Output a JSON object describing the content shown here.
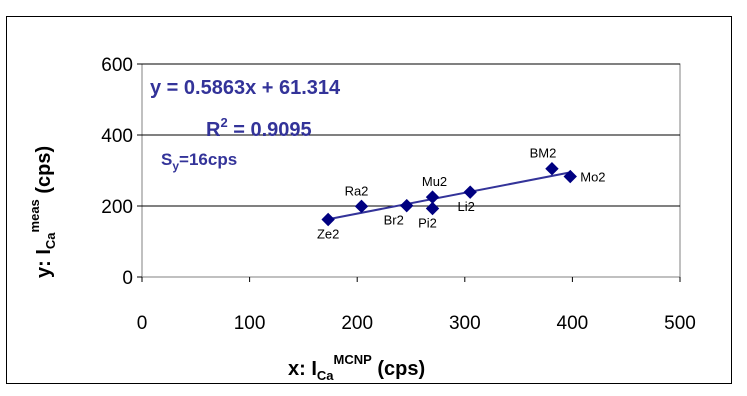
{
  "chart_data": {
    "type": "scatter",
    "title": "",
    "xlabel": {
      "prefix": "x:  I",
      "sub": "Ca",
      "sup": "MCNP",
      "suffix": " (cps)"
    },
    "ylabel": {
      "prefix": "y:  I",
      "sub": "Ca",
      "sup": "meas",
      "suffix": "  (cps)"
    },
    "xlim": [
      0,
      500
    ],
    "ylim": [
      0,
      600
    ],
    "xticks": [
      0,
      100,
      200,
      300,
      400,
      500
    ],
    "yticks": [
      0,
      200,
      400,
      600
    ],
    "grid": "horizontal",
    "points": [
      {
        "label": "Ze2",
        "x": 173,
        "y": 162
      },
      {
        "label": "Ra2",
        "x": 204,
        "y": 199
      },
      {
        "label": "Br2",
        "x": 246,
        "y": 201
      },
      {
        "label": "Mu2",
        "x": 270,
        "y": 225
      },
      {
        "label": "Pi2",
        "x": 270,
        "y": 193
      },
      {
        "label": "Li2",
        "x": 305,
        "y": 239
      },
      {
        "label": "BM2",
        "x": 381,
        "y": 305
      },
      {
        "label": "Mo2",
        "x": 398,
        "y": 283
      }
    ],
    "trendline": {
      "slope": 0.5863,
      "intercept": 61.314,
      "x_range": [
        173,
        398
      ]
    },
    "annotations": {
      "equation": "y = 0.5863x + 61.314",
      "r2_prefix": "R",
      "r2_sup": "2",
      "r2_suffix": " = 0.9095",
      "sy_prefix": "S",
      "sy_sub": "y",
      "sy_suffix": "=16cps"
    },
    "colors": {
      "marker": "#000080",
      "trendline": "#333399",
      "annotation": "#333399",
      "grid": "#000000"
    }
  }
}
